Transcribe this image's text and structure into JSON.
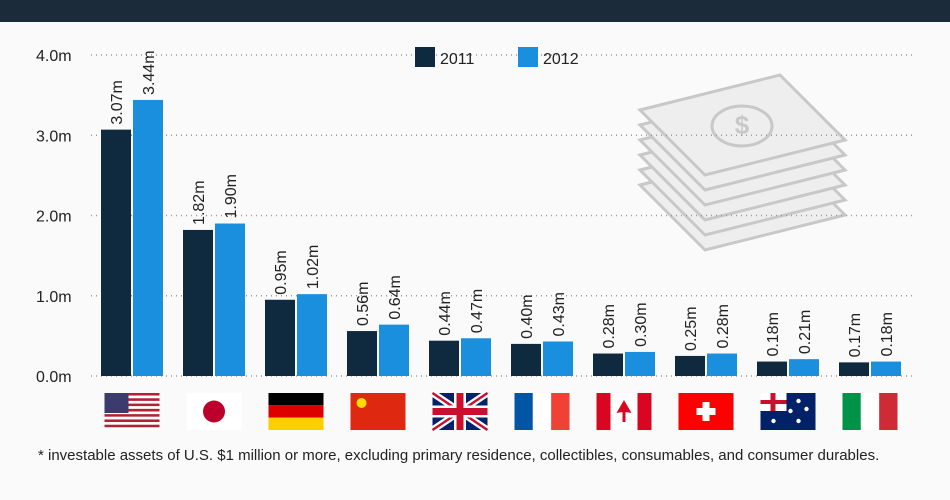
{
  "chart_data": {
    "type": "bar",
    "categories": [
      null,
      null,
      null,
      null,
      null,
      null,
      null,
      null,
      null,
      null
    ],
    "series": [
      {
        "name": "2011",
        "color": "#0f2a3f",
        "values": [
          3.07,
          1.82,
          0.95,
          0.56,
          0.44,
          0.4,
          0.28,
          0.25,
          0.18,
          0.17
        ],
        "value_labels": [
          "3.07m",
          "1.82m",
          "0.95m",
          "0.56m",
          "0.44m",
          "0.40m",
          "0.28m",
          "0.25m",
          "0.18m",
          "0.17m"
        ]
      },
      {
        "name": "2012",
        "color": "#1a8fde",
        "values": [
          3.44,
          1.9,
          1.02,
          0.64,
          0.47,
          0.43,
          0.3,
          0.28,
          0.21,
          0.18
        ],
        "value_labels": [
          "3.44m",
          "1.90m",
          "1.02m",
          "0.64m",
          "0.47m",
          "0.43m",
          "0.30m",
          "0.28m",
          "0.21m",
          "0.18m"
        ]
      }
    ],
    "ylim": [
      0,
      4
    ],
    "yticks": [
      {
        "value": 0,
        "label": "0.0m"
      },
      {
        "value": 1,
        "label": "1.0m"
      },
      {
        "value": 2,
        "label": "2.0m"
      },
      {
        "value": 3,
        "label": "3.0m"
      },
      {
        "value": 4,
        "label": "4.0m"
      }
    ],
    "grid": true,
    "legend": "top",
    "footnote": "* investable assets of U.S. $1 million or more, excluding primary residence, collectibles, consumables, and consumer durables."
  }
}
